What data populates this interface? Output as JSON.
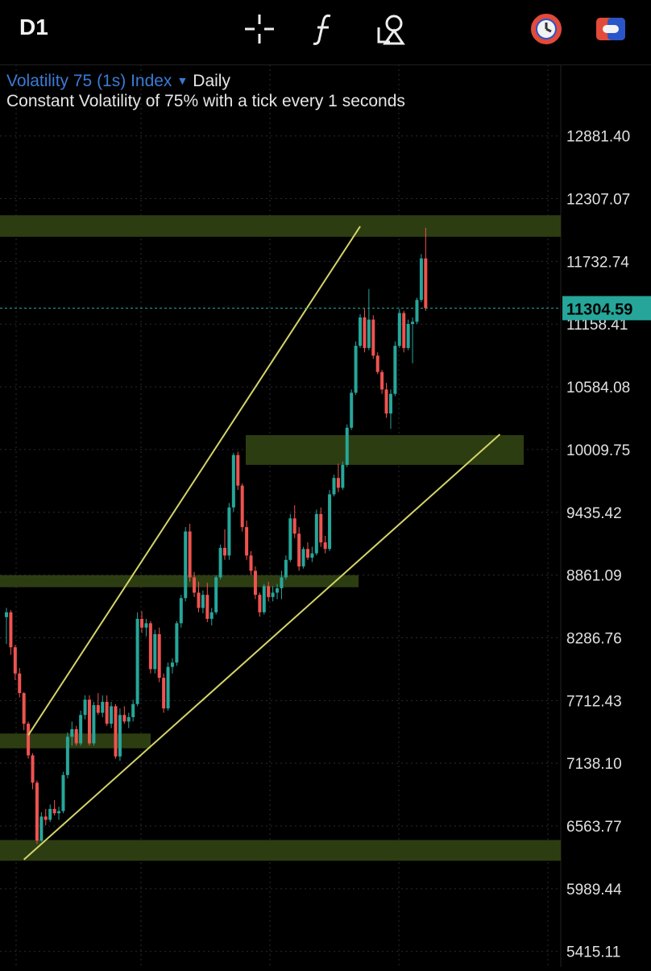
{
  "toolbar": {
    "timeframe": "D1",
    "icons": [
      "crosshair-icon",
      "function-icon",
      "drawing-tools-icon",
      "timer-icon",
      "toggle-icon"
    ]
  },
  "legend": {
    "symbol": "Volatility 75 (1s) Index",
    "timeframe": "Daily",
    "description": "Constant Volatility of 75% with a tick every 1 seconds"
  },
  "colors": {
    "background": "#000000",
    "up_candle": "#26a69a",
    "down_candle": "#ef5350",
    "zone_fill": "#2d3d12",
    "trendline": "#d4d46a",
    "price_label_bg": "#26a69a",
    "grid": "#2a2a3a"
  },
  "chart_data": {
    "type": "candlestick",
    "y_axis_ticks": [
      "12881.40",
      "12307.07",
      "11732.74",
      "11158.41",
      "10584.08",
      "10009.75",
      "9435.42",
      "8861.09",
      "8286.76",
      "7712.43",
      "7138.10",
      "6563.77",
      "5989.44",
      "5415.11"
    ],
    "ylim": [
      5415.11,
      12881.4
    ],
    "current_price": "11304.59",
    "grid": true,
    "candles": [
      [
        8476,
        8560,
        8230,
        8520
      ],
      [
        8520,
        8540,
        8130,
        8200
      ],
      [
        8200,
        8220,
        7900,
        7960
      ],
      [
        7960,
        8010,
        7740,
        7780
      ],
      [
        7780,
        7790,
        7440,
        7500
      ],
      [
        7500,
        7520,
        7180,
        7210
      ],
      [
        7210,
        7230,
        6900,
        6960
      ],
      [
        6960,
        6980,
        6400,
        6430
      ],
      [
        6430,
        6690,
        6420,
        6650
      ],
      [
        6650,
        6720,
        6570,
        6620
      ],
      [
        6620,
        6760,
        6600,
        6720
      ],
      [
        6720,
        6800,
        6660,
        6680
      ],
      [
        6680,
        6740,
        6620,
        6700
      ],
      [
        6700,
        7060,
        6680,
        7030
      ],
      [
        7030,
        7420,
        7000,
        7380
      ],
      [
        7380,
        7520,
        7300,
        7450
      ],
      [
        7450,
        7480,
        7300,
        7320
      ],
      [
        7320,
        7620,
        7300,
        7580
      ],
      [
        7580,
        7760,
        7540,
        7720
      ],
      [
        7720,
        7760,
        7300,
        7320
      ],
      [
        7320,
        7700,
        7300,
        7670
      ],
      [
        7670,
        7780,
        7580,
        7600
      ],
      [
        7600,
        7760,
        7560,
        7700
      ],
      [
        7700,
        7760,
        7480,
        7500
      ],
      [
        7500,
        7700,
        7460,
        7660
      ],
      [
        7660,
        7680,
        7180,
        7200
      ],
      [
        7200,
        7640,
        7160,
        7580
      ],
      [
        7580,
        7660,
        7500,
        7520
      ],
      [
        7520,
        7600,
        7460,
        7560
      ],
      [
        7560,
        7720,
        7520,
        7680
      ],
      [
        7680,
        8520,
        7660,
        8460
      ],
      [
        8460,
        8530,
        8330,
        8380
      ],
      [
        8380,
        8460,
        8300,
        8420
      ],
      [
        8420,
        8440,
        7960,
        8000
      ],
      [
        8000,
        8360,
        7960,
        8320
      ],
      [
        8320,
        8380,
        7880,
        7920
      ],
      [
        7920,
        7960,
        7600,
        7640
      ],
      [
        7640,
        8060,
        7620,
        8020
      ],
      [
        8020,
        8100,
        7960,
        8060
      ],
      [
        8060,
        8440,
        8030,
        8420
      ],
      [
        8420,
        8680,
        8380,
        8650
      ],
      [
        8650,
        9300,
        8620,
        9260
      ],
      [
        9260,
        9330,
        8800,
        8840
      ],
      [
        8840,
        8890,
        8660,
        8700
      ],
      [
        8700,
        8800,
        8520,
        8560
      ],
      [
        8560,
        8720,
        8510,
        8680
      ],
      [
        8680,
        8790,
        8430,
        8460
      ],
      [
        8460,
        8560,
        8400,
        8520
      ],
      [
        8520,
        8860,
        8500,
        8840
      ],
      [
        8840,
        9140,
        8820,
        9110
      ],
      [
        9110,
        9280,
        9000,
        9040
      ],
      [
        9040,
        9520,
        9000,
        9480
      ],
      [
        9480,
        9980,
        9440,
        9960
      ],
      [
        9960,
        9990,
        9640,
        9680
      ],
      [
        9680,
        9700,
        9260,
        9300
      ],
      [
        9300,
        9360,
        9000,
        9040
      ],
      [
        9040,
        9080,
        8860,
        8900
      ],
      [
        8900,
        8940,
        8640,
        8680
      ],
      [
        8680,
        8700,
        8480,
        8520
      ],
      [
        8520,
        8780,
        8500,
        8760
      ],
      [
        8760,
        8800,
        8620,
        8660
      ],
      [
        8660,
        8760,
        8620,
        8700
      ],
      [
        8700,
        8780,
        8640,
        8740
      ],
      [
        8740,
        8900,
        8640,
        8840
      ],
      [
        8840,
        9040,
        8820,
        9000
      ],
      [
        9000,
        9420,
        8980,
        9380
      ],
      [
        9380,
        9500,
        9200,
        9240
      ],
      [
        9240,
        9300,
        8900,
        8940
      ],
      [
        8940,
        9120,
        8920,
        9100
      ],
      [
        9100,
        9160,
        9000,
        9020
      ],
      [
        9020,
        9120,
        8980,
        9060
      ],
      [
        9060,
        9460,
        9040,
        9420
      ],
      [
        9420,
        9480,
        9120,
        9160
      ],
      [
        9160,
        9220,
        9060,
        9100
      ],
      [
        9100,
        9640,
        9080,
        9600
      ],
      [
        9600,
        9780,
        9580,
        9750
      ],
      [
        9750,
        9880,
        9620,
        9660
      ],
      [
        9660,
        9900,
        9640,
        9870
      ],
      [
        9870,
        10240,
        9850,
        10210
      ],
      [
        10210,
        10560,
        10190,
        10530
      ],
      [
        10530,
        11000,
        10510,
        10960
      ],
      [
        10960,
        11250,
        10940,
        11220
      ],
      [
        11220,
        11300,
        10900,
        10940
      ],
      [
        10940,
        11480,
        10920,
        11200
      ],
      [
        11200,
        11240,
        10840,
        10870
      ],
      [
        10870,
        10900,
        10700,
        10720
      ],
      [
        10720,
        10740,
        10520,
        10560
      ],
      [
        10560,
        10620,
        10300,
        10340
      ],
      [
        10340,
        10560,
        10200,
        10520
      ],
      [
        10520,
        11000,
        10500,
        10960
      ],
      [
        10960,
        11300,
        10940,
        11260
      ],
      [
        11260,
        11280,
        10900,
        10940
      ],
      [
        10940,
        11200,
        10920,
        11160
      ],
      [
        11160,
        11220,
        10800,
        11180
      ],
      [
        11180,
        11400,
        11160,
        11380
      ],
      [
        11380,
        11800,
        11360,
        11760
      ],
      [
        11760,
        12040,
        11280,
        11304.59
      ]
    ],
    "support_resistance_zones": [
      {
        "low": 11958,
        "high": 12155
      },
      {
        "low": 9870,
        "high": 10142
      },
      {
        "low": 8750,
        "high": 8860
      },
      {
        "low": 7275,
        "high": 7410
      },
      {
        "low": 6245,
        "high": 6435
      }
    ],
    "trendlines": [
      {
        "from": [
          5,
          7395
        ],
        "to": [
          81,
          12053
        ]
      },
      {
        "from": [
          4,
          6256
        ],
        "to": [
          113,
          10149
        ]
      }
    ]
  }
}
